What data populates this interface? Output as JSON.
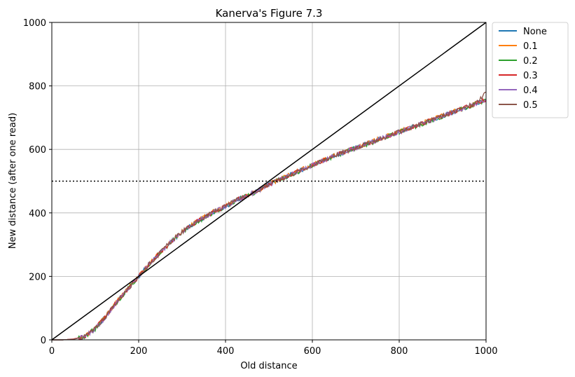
{
  "chart_data": {
    "type": "line",
    "title": "Kanerva's Figure 7.3",
    "xlabel": "Old distance",
    "ylabel": "New distance (after one read)",
    "xlim": [
      0,
      1000
    ],
    "ylim": [
      0,
      1000
    ],
    "xticks": [
      0,
      200,
      400,
      600,
      800,
      1000
    ],
    "yticks": [
      0,
      200,
      400,
      600,
      800,
      1000
    ],
    "grid": true,
    "legend_position": "outside-right-top",
    "x": [
      0,
      25,
      50,
      75,
      100,
      125,
      150,
      175,
      200,
      225,
      250,
      275,
      300,
      325,
      350,
      375,
      400,
      425,
      450,
      475,
      500,
      525,
      550,
      575,
      600,
      625,
      650,
      675,
      700,
      725,
      750,
      775,
      800,
      825,
      850,
      875,
      900,
      925,
      950,
      975,
      1000
    ],
    "series": [
      {
        "name": "None",
        "color": "#1f77b4",
        "values": [
          0,
          0,
          2,
          10,
          35,
          75,
          120,
          160,
          200,
          240,
          275,
          310,
          340,
          365,
          385,
          405,
          420,
          440,
          455,
          470,
          490,
          505,
          520,
          535,
          550,
          565,
          580,
          592,
          605,
          617,
          630,
          642,
          655,
          668,
          680,
          693,
          705,
          718,
          731,
          744,
          757
        ]
      },
      {
        "name": "0.1",
        "color": "#ff7f0e",
        "values": [
          0,
          0,
          2,
          11,
          36,
          76,
          121,
          161,
          201,
          241,
          276,
          311,
          341,
          366,
          386,
          406,
          421,
          441,
          456,
          471,
          491,
          506,
          521,
          536,
          551,
          566,
          580,
          593,
          606,
          618,
          631,
          643,
          656,
          669,
          681,
          694,
          706,
          719,
          732,
          745,
          758
        ]
      },
      {
        "name": "0.2",
        "color": "#2ca02c",
        "values": [
          0,
          0,
          2,
          10,
          35,
          74,
          119,
          159,
          199,
          239,
          274,
          309,
          339,
          364,
          384,
          404,
          419,
          439,
          454,
          469,
          489,
          504,
          519,
          534,
          549,
          564,
          579,
          591,
          604,
          616,
          629,
          641,
          654,
          667,
          679,
          692,
          704,
          717,
          730,
          743,
          756
        ]
      },
      {
        "name": "0.3",
        "color": "#d62728",
        "values": [
          0,
          0,
          3,
          11,
          36,
          75,
          120,
          160,
          200,
          240,
          275,
          310,
          340,
          365,
          385,
          405,
          420,
          440,
          455,
          470,
          490,
          505,
          520,
          535,
          550,
          565,
          580,
          592,
          605,
          617,
          630,
          642,
          655,
          668,
          680,
          693,
          705,
          718,
          731,
          744,
          757
        ]
      },
      {
        "name": "0.4",
        "color": "#9467bd",
        "values": [
          0,
          0,
          2,
          10,
          34,
          74,
          120,
          160,
          200,
          240,
          275,
          310,
          340,
          365,
          385,
          405,
          420,
          440,
          455,
          470,
          490,
          505,
          520,
          535,
          550,
          565,
          580,
          592,
          605,
          617,
          630,
          642,
          655,
          668,
          680,
          693,
          705,
          718,
          731,
          744,
          757
        ]
      },
      {
        "name": "0.5",
        "color": "#8c564b",
        "values": [
          0,
          0,
          2,
          10,
          35,
          75,
          120,
          160,
          200,
          240,
          275,
          310,
          340,
          365,
          385,
          405,
          420,
          440,
          455,
          470,
          490,
          505,
          520,
          535,
          550,
          565,
          580,
          592,
          605,
          617,
          630,
          642,
          655,
          668,
          680,
          693,
          705,
          718,
          731,
          744,
          780
        ]
      }
    ],
    "reference_lines": [
      {
        "kind": "diagonal",
        "from": [
          0,
          0
        ],
        "to": [
          1000,
          1000
        ],
        "color": "#000000",
        "style": "solid"
      },
      {
        "kind": "horizontal",
        "y": 500,
        "color": "#000000",
        "style": "dotted"
      }
    ]
  }
}
